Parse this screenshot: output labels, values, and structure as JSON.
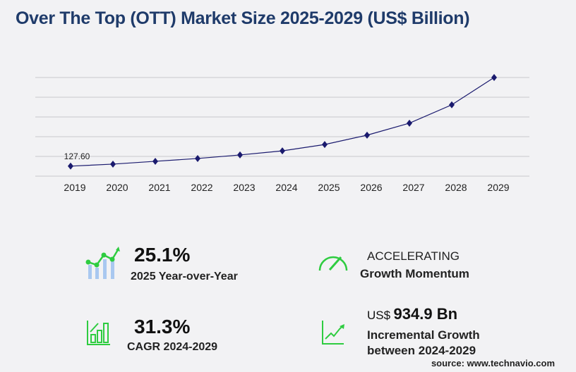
{
  "title": "Over The Top (OTT) Market Size 2025-2029 (US$ Billion)",
  "chart_data": {
    "type": "line",
    "categories": [
      "2019",
      "2020",
      "2021",
      "2022",
      "2023",
      "2024",
      "2025",
      "2026",
      "2027",
      "2028",
      "2029"
    ],
    "values": [
      127.6,
      153,
      189,
      225,
      270,
      322,
      403,
      522,
      675,
      909,
      1257
    ],
    "data_labels": [
      {
        "category": "2019",
        "text": "127.60"
      }
    ],
    "ylim": [
      0,
      1257
    ],
    "grid": true,
    "line_color": "#1a1a6e",
    "marker": "diamond"
  },
  "stats": {
    "yoy": {
      "value": "25.1%",
      "label": "2025 Year-over-Year"
    },
    "momentum": {
      "value": "ACCELERATING",
      "label": "Growth Momentum"
    },
    "cagr": {
      "value": "31.3%",
      "label": "CAGR 2024-2029"
    },
    "incremental": {
      "prefix": "US$",
      "value": "934.9 Bn",
      "label1": "Incremental Growth",
      "label2": "between 2024-2029"
    }
  },
  "source": "source: www.technavio.com",
  "colors": {
    "title": "#1f3b6a",
    "accent_green": "#2ecc40",
    "bar_blue": "#a9c8f0"
  }
}
